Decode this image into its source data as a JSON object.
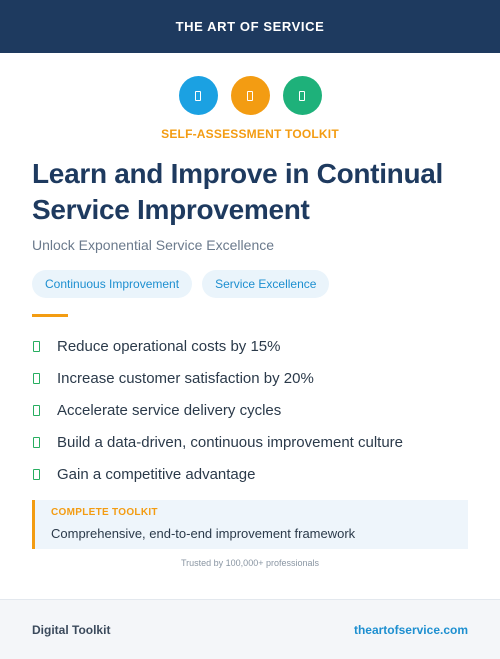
{
  "header": {
    "title": "THE ART OF SERVICE"
  },
  "icons": [
    {
      "name": "blue-badge-icon",
      "color": "#1ba1e2"
    },
    {
      "name": "orange-badge-icon",
      "color": "#f39c12"
    },
    {
      "name": "green-badge-icon",
      "color": "#1eb17a"
    }
  ],
  "kicker": "SELF-ASSESSMENT TOOLKIT",
  "title": "Learn and Improve in Continual Service Improvement",
  "subtitle": "Unlock Exponential Service Excellence",
  "tags": [
    "Continuous Improvement",
    "Service Excellence"
  ],
  "benefits": [
    "Reduce operational costs by 15%",
    "Increase customer satisfaction by 20%",
    "Accelerate service delivery cycles",
    "Build a data-driven, continuous improvement culture",
    "Gain a competitive advantage"
  ],
  "callout": {
    "label": "COMPLETE TOOLKIT",
    "description": "Comprehensive, end-to-end improvement framework"
  },
  "trusted": "Trusted by 100,000+ professionals",
  "footer": {
    "brand": "Digital Toolkit",
    "site": "theartofservice.com"
  },
  "colors": {
    "navy": "#1e3a5f",
    "accent": "#f39c12",
    "link": "#1d8fd0",
    "check": "#27ae60"
  }
}
